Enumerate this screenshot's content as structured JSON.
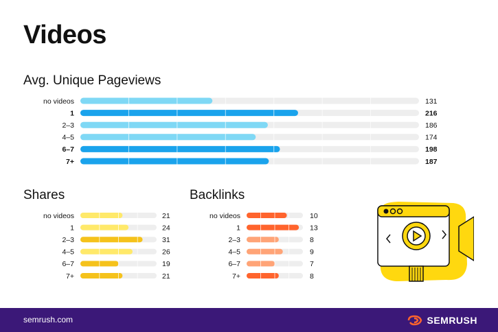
{
  "title": "Videos",
  "chart_data": [
    {
      "type": "bar",
      "title": "Avg. Unique Pageviews",
      "categories": [
        "no videos",
        "1",
        "2–3",
        "4–5",
        "6–7",
        "7+"
      ],
      "values": [
        131,
        216,
        186,
        174,
        198,
        187
      ],
      "bold": [
        false,
        true,
        false,
        false,
        true,
        true
      ],
      "colors": [
        "#7fd8f5",
        "#1aa3ec",
        "#7fd8f5",
        "#7fd8f5",
        "#1aa3ec",
        "#1aa3ec"
      ],
      "track_color": "#eeeeee",
      "max": 336
    },
    {
      "type": "bar",
      "title": "Shares",
      "categories": [
        "no videos",
        "1",
        "2–3",
        "4–5",
        "6–7",
        "7+"
      ],
      "values": [
        21,
        24,
        31,
        26,
        19,
        21
      ],
      "bold": [
        false,
        false,
        false,
        false,
        false,
        false
      ],
      "colors": [
        "#ffe96a",
        "#ffe96a",
        "#f5c21b",
        "#ffe96a",
        "#f5c21b",
        "#f5c21b"
      ],
      "track_color": "#eeeeee",
      "max": 38
    },
    {
      "type": "bar",
      "title": "Backlinks",
      "categories": [
        "no videos",
        "1",
        "2–3",
        "4–5",
        "6–7",
        "7+"
      ],
      "values": [
        10,
        13,
        8,
        9,
        7,
        8
      ],
      "bold": [
        false,
        false,
        false,
        false,
        false,
        false
      ],
      "colors": [
        "#ff642d",
        "#ff642d",
        "#ffa477",
        "#ffa477",
        "#ffa477",
        "#ff642d"
      ],
      "track_color": "#eeeeee",
      "max": 14
    }
  ],
  "footer": {
    "url": "semrush.com",
    "brand": "SEMRUSH"
  },
  "illustration": {
    "icon": "video-camera-icon",
    "accent": "#ffd80f"
  }
}
